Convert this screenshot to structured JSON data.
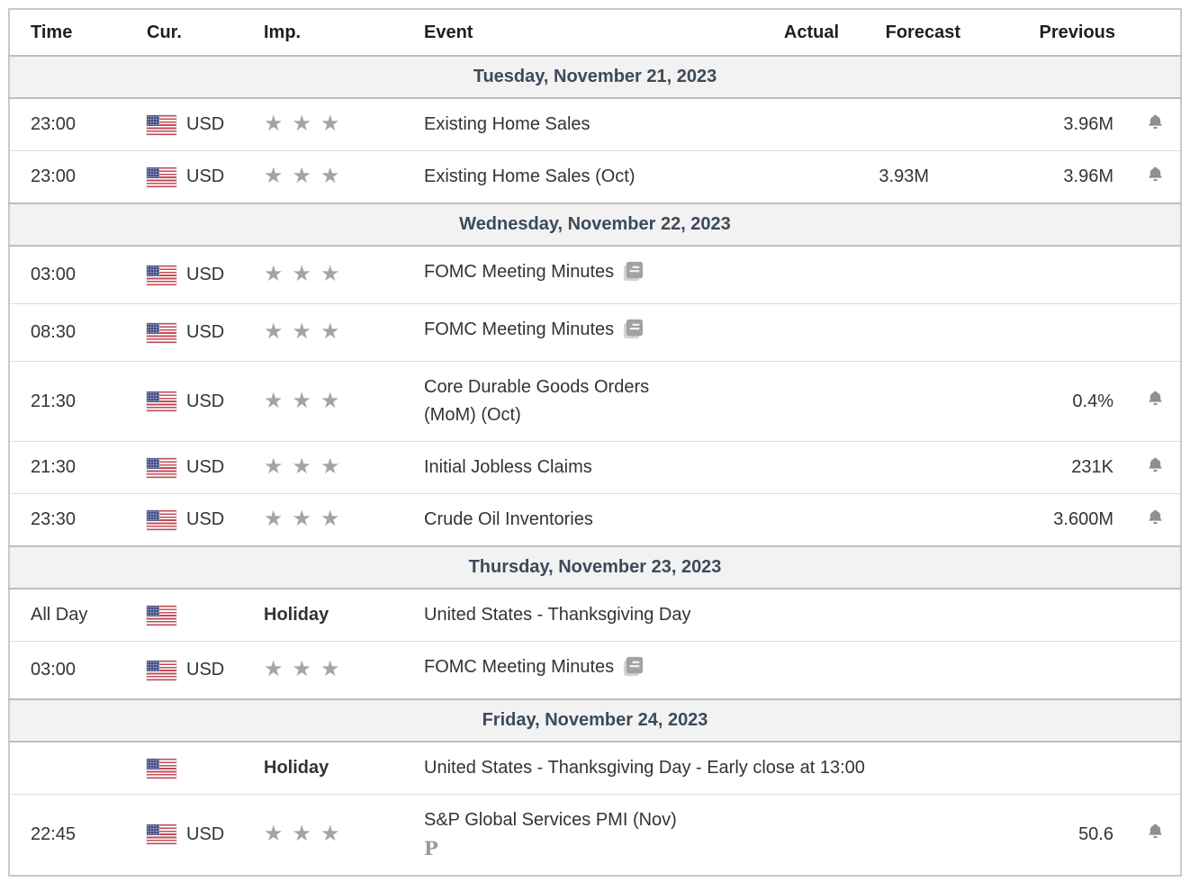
{
  "header": {
    "columns": [
      "Time",
      "Cur.",
      "Imp.",
      "Event",
      "Actual",
      "Forecast",
      "Previous",
      ""
    ]
  },
  "colors": {
    "day_band_bg": "#f2f2f2",
    "day_band_text": "#3c4a5a",
    "body_text": "#333333",
    "star": "#a4a4a4",
    "bell": "#8f8f8f",
    "row_border": "#dcdcdc",
    "band_border": "#bdbdbd",
    "outer_border": "#c9c9c9",
    "flag_red": "#c24d57",
    "flag_blue": "#434b7e"
  },
  "icons": {
    "flag": "us-flag-icon",
    "importance": "importance-stars-icon",
    "report": "report-icon",
    "bell": "alert-bell-icon",
    "preliminary_marker": "P"
  },
  "sections": [
    {
      "date": "Tuesday, November 21, 2023",
      "rows": [
        {
          "time": "23:00",
          "currency": "USD",
          "importance": 3,
          "event_lines": [
            "Existing Home Sales"
          ],
          "actual": "",
          "forecast": "",
          "previous": "3.96M",
          "bell": true
        },
        {
          "time": "23:00",
          "currency": "USD",
          "importance": 3,
          "event_lines": [
            "Existing Home Sales (Oct)"
          ],
          "actual": "",
          "forecast": "3.93M",
          "previous": "3.96M",
          "bell": true
        }
      ]
    },
    {
      "date": "Wednesday, November 22, 2023",
      "rows": [
        {
          "time": "03:00",
          "currency": "USD",
          "importance": 3,
          "event_lines": [
            "FOMC Meeting Minutes"
          ],
          "report_icon": true,
          "actual": "",
          "forecast": "",
          "previous": "",
          "bell": false
        },
        {
          "time": "08:30",
          "currency": "USD",
          "importance": 3,
          "event_lines": [
            "FOMC Meeting Minutes"
          ],
          "report_icon": true,
          "actual": "",
          "forecast": "",
          "previous": "",
          "bell": false
        },
        {
          "time": "21:30",
          "currency": "USD",
          "importance": 3,
          "event_lines": [
            "Core Durable Goods Orders",
            "(MoM) (Oct)"
          ],
          "actual": "",
          "forecast": "",
          "previous": "0.4%",
          "bell": true
        },
        {
          "time": "21:30",
          "currency": "USD",
          "importance": 3,
          "event_lines": [
            "Initial Jobless Claims"
          ],
          "actual": "",
          "forecast": "",
          "previous": "231K",
          "bell": true
        },
        {
          "time": "23:30",
          "currency": "USD",
          "importance": 3,
          "event_lines": [
            "Crude Oil Inventories"
          ],
          "actual": "",
          "forecast": "",
          "previous": "3.600M",
          "bell": true
        }
      ]
    },
    {
      "date": "Thursday, November 23, 2023",
      "rows": [
        {
          "time": "All Day",
          "currency": "",
          "holiday_label": "Holiday",
          "event_lines": [
            "United States - Thanksgiving Day"
          ]
        },
        {
          "time": "03:00",
          "currency": "USD",
          "importance": 3,
          "event_lines": [
            "FOMC Meeting Minutes"
          ],
          "report_icon": true,
          "actual": "",
          "forecast": "",
          "previous": "",
          "bell": false
        }
      ]
    },
    {
      "date": "Friday, November 24, 2023",
      "rows": [
        {
          "time": "",
          "currency": "",
          "holiday_label": "Holiday",
          "event_lines": [
            "United States - Thanksgiving Day - Early close at 13:00"
          ]
        },
        {
          "time": "22:45",
          "currency": "USD",
          "importance": 3,
          "event_lines": [
            "S&P Global Services PMI (Nov)"
          ],
          "preliminary": "P",
          "actual": "",
          "forecast": "",
          "previous": "50.6",
          "bell": true
        }
      ]
    }
  ]
}
